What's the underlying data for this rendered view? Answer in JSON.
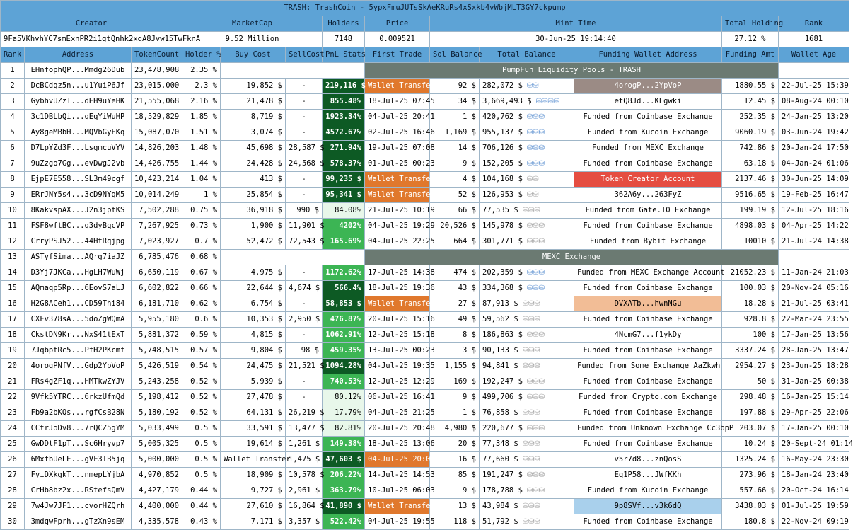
{
  "title": "TRASH: TrashCoin - 5ypxFmuJUTsSkAeKRuRs4xSxkb4vWbjMLT3GY7ckpump",
  "summary_headers": [
    "Creator",
    "MarketCap",
    "Holders",
    "Price",
    "Mint Time",
    "Total Holding",
    "Rank"
  ],
  "summary": {
    "creator": "9Fa5VKhvhYC7smExnPR2i1gtQnhk2xqA8Jvw15TwFknA",
    "marketcap": "9.52 Million",
    "holders": "7148",
    "price": "0.009521",
    "mint_time": "30-Jun-25 19:14:40",
    "total_holding": "27.12 %",
    "rank": "1681"
  },
  "columns": [
    "Rank",
    "Address",
    "TokenCount",
    "Holder %",
    "Buy Cost",
    "SellCost",
    "PnL Stats",
    "First Trade",
    "Sol Balance",
    "Total Balance",
    "Funding Wallet Address",
    "Funding Amt",
    "Wallet Age"
  ],
  "rows": [
    {
      "rank": "1",
      "addr": "EHnfophQP...Mmdg26Dub",
      "tokens": "23,478,908",
      "pct": "2.35 %",
      "span": "PumpFun Liquidity Pools - TRASH"
    },
    {
      "rank": "2",
      "addr": "DcBCdqz5n...u1YuiP6Jf",
      "tokens": "23,015,000",
      "pct": "2.3 %",
      "buy": "19,852 $",
      "sell": "-",
      "pnl": "219,116 $",
      "pnl_style": "dark",
      "first": "Wallet Transfer",
      "first_style": "wt",
      "sol": "92 $",
      "total": "282,072 $",
      "icons": "blue2",
      "fund": "4orogP...2YpVoP",
      "fund_style": "grey",
      "amt": "1880.55 $",
      "age": "22-Jul-25 15:39"
    },
    {
      "rank": "3",
      "addr": "GybhvUZzT...dEH9uYeHK",
      "tokens": "21,555,068",
      "pct": "2.16 %",
      "buy": "21,478 $",
      "sell": "-",
      "pnl": "855.48%",
      "pnl_style": "dark",
      "first": "18-Jul-25 07:45",
      "sol": "34 $",
      "total": "3,669,493 $",
      "icons": "blue4",
      "fund": "etQ8Jd...KLgwki",
      "amt": "12.45 $",
      "age": "08-Aug-24 00:10"
    },
    {
      "rank": "4",
      "addr": "3c1DBLbQi...qEqYiWuHP",
      "tokens": "18,529,829",
      "pct": "1.85 %",
      "buy": "8,719 $",
      "sell": "-",
      "pnl": "1923.34%",
      "pnl_style": "dark",
      "first": "04-Jul-25 20:41",
      "sol": "1 $",
      "total": "420,762 $",
      "icons": "blue3",
      "fund": "Funded from Coinbase Exchange",
      "amt": "252.35 $",
      "age": "24-Jan-25 13:20"
    },
    {
      "rank": "5",
      "addr": "Ay8geMBbH...MQVbGyFKq",
      "tokens": "15,087,070",
      "pct": "1.51 %",
      "buy": "3,074 $",
      "sell": "-",
      "pnl": "4572.67%",
      "pnl_style": "dark",
      "first": "02-Jul-25 16:46",
      "sol": "1,169 $",
      "total": "955,137 $",
      "icons": "blue3",
      "fund": "Funded from Kucoin Exchange",
      "amt": "9060.19 $",
      "age": "03-Jun-24 19:42"
    },
    {
      "rank": "6",
      "addr": "D7LpYZd3F...LsgmcuVYV",
      "tokens": "14,826,203",
      "pct": "1.48 %",
      "buy": "45,698 $",
      "sell": "28,587 $",
      "pnl": "271.94%",
      "pnl_style": "dark",
      "first": "19-Jul-25 07:08",
      "sol": "14 $",
      "total": "706,126 $",
      "icons": "blue3",
      "fund": "Funded from MEXC Exchange",
      "amt": "742.86 $",
      "age": "20-Jan-24 17:50"
    },
    {
      "rank": "7",
      "addr": "9uZzgo7Gg...evDwgJ2vb",
      "tokens": "14,426,755",
      "pct": "1.44 %",
      "buy": "24,428 $",
      "sell": "24,568 $",
      "pnl": "578.37%",
      "pnl_style": "dark",
      "first": "01-Jul-25 00:23",
      "sol": "9 $",
      "total": "152,205 $",
      "icons": "blue3",
      "fund": "Funded from Coinbase Exchange",
      "amt": "63.18 $",
      "age": "04-Jan-24 01:06"
    },
    {
      "rank": "8",
      "addr": "EjpE7E558...SL3m49cgf",
      "tokens": "10,423,214",
      "pct": "1.04 %",
      "buy": "413 $",
      "sell": "-",
      "pnl": "99,235 $",
      "pnl_style": "dark",
      "first": "Wallet Transfer",
      "first_style": "wt",
      "sol": "4 $",
      "total": "104,168 $",
      "icons": "mix2",
      "fund": "Token Creator Account",
      "fund_style": "red",
      "amt": "2137.46 $",
      "age": "30-Jun-25 14:09"
    },
    {
      "rank": "9",
      "addr": "ERrJNY5s4...3cD9NYqM5",
      "tokens": "10,014,249",
      "pct": "1 %",
      "buy": "25,854 $",
      "sell": "-",
      "pnl": "95,341 $",
      "pnl_style": "dark",
      "first": "Wallet Transfer",
      "first_style": "wt",
      "sol": "52 $",
      "total": "126,953 $",
      "icons": "mix2",
      "fund": "362A6y...263FyZ",
      "amt": "9516.65 $",
      "age": "19-Feb-25 16:47"
    },
    {
      "rank": "10",
      "addr": "8KakvspAX...J2n3jptKS",
      "tokens": "7,502,288",
      "pct": "0.75 %",
      "buy": "36,918 $",
      "sell": "990 $",
      "pnl": "84.08%",
      "pnl_style": "light",
      "first": "21-Jul-25 10:19",
      "sol": "66 $",
      "total": "77,535 $",
      "icons": "grey3",
      "fund": "Funded from Gate.IO Exchange",
      "amt": "199.19 $",
      "age": "12-Jul-25 18:16"
    },
    {
      "rank": "11",
      "addr": "FSF8wftBC...q3dyBqcVP",
      "tokens": "7,267,925",
      "pct": "0.73 %",
      "buy": "1,900 $",
      "sell": "11,901 $",
      "pnl": "4202%",
      "pnl_style": "mid",
      "first": "04-Jul-25 19:29",
      "sol": "20,526 $",
      "total": "145,978 $",
      "icons": "grey3",
      "fund": "Funded from Coinbase Exchange",
      "amt": "4898.03 $",
      "age": "04-Apr-25 14:22"
    },
    {
      "rank": "12",
      "addr": "CrryPSJ52...44HtRqjpg",
      "tokens": "7,023,927",
      "pct": "0.7 %",
      "buy": "52,472 $",
      "sell": "72,543 $",
      "pnl": "165.69%",
      "pnl_style": "mid",
      "first": "04-Jul-25 22:25",
      "sol": "664 $",
      "total": "301,771 $",
      "icons": "grey3",
      "fund": "Funded from Bybit Exchange",
      "amt": "10010 $",
      "age": "21-Jul-24 14:38"
    },
    {
      "rank": "13",
      "addr": "ASTyfSima...AQrg7iaJZ",
      "tokens": "6,785,476",
      "pct": "0.68 %",
      "span": "MEXC Exchange"
    },
    {
      "rank": "14",
      "addr": "D3Yj7JKCa...HgLH7WuWj",
      "tokens": "6,650,119",
      "pct": "0.67 %",
      "buy": "4,975 $",
      "sell": "-",
      "pnl": "1172.62%",
      "pnl_style": "mid",
      "first": "17-Jul-25 14:38",
      "sol": "474 $",
      "total": "202,359 $",
      "icons": "blue3",
      "fund": "Funded from MEXC Exchange Account",
      "amt": "21052.23 $",
      "age": "11-Jan-24 21:03"
    },
    {
      "rank": "15",
      "addr": "AQmaqp5Rp...6EovS7aLJ",
      "tokens": "6,602,822",
      "pct": "0.66 %",
      "buy": "22,644 $",
      "sell": "4,674 $",
      "pnl": "566.4%",
      "pnl_style": "dark",
      "first": "18-Jul-25 19:36",
      "sol": "43 $",
      "total": "334,368 $",
      "icons": "blue3",
      "fund": "Funded from Coinbase Exchange",
      "amt": "100.03 $",
      "age": "20-Nov-24 05:16"
    },
    {
      "rank": "16",
      "addr": "H2G8ACeh1...CD59Thi84",
      "tokens": "6,181,710",
      "pct": "0.62 %",
      "buy": "6,754 $",
      "sell": "-",
      "pnl": "58,853 $",
      "pnl_style": "dark",
      "first": "Wallet Transfer",
      "first_style": "wt",
      "sol": "27 $",
      "total": "87,913 $",
      "icons": "grey3",
      "fund": "DVXATb...hwnNGu",
      "fund_style": "peach",
      "amt": "18.28 $",
      "age": "21-Jul-25 03:41"
    },
    {
      "rank": "17",
      "addr": "CXFv378sA...5doZgWQmA",
      "tokens": "5,955,180",
      "pct": "0.6 %",
      "buy": "10,353 $",
      "sell": "2,950 $",
      "pnl": "476.87%",
      "pnl_style": "mid",
      "first": "20-Jul-25 15:16",
      "sol": "49 $",
      "total": "59,562 $",
      "icons": "grey3",
      "fund": "Funded from Coinbase Exchange",
      "amt": "928.8 $",
      "age": "22-Mar-24 23:55"
    },
    {
      "rank": "18",
      "addr": "CkstDN9Kr...NxS41tExT",
      "tokens": "5,881,372",
      "pct": "0.59 %",
      "buy": "4,815 $",
      "sell": "-",
      "pnl": "1062.91%",
      "pnl_style": "mid",
      "first": "12-Jul-25 15:18",
      "sol": "8 $",
      "total": "186,863 $",
      "icons": "grey3",
      "fund": "4NcmG7...f1ykDy",
      "amt": "100 $",
      "age": "17-Jan-25 13:56"
    },
    {
      "rank": "19",
      "addr": "7JqbptRc5...PfH2PKcmf",
      "tokens": "5,748,515",
      "pct": "0.57 %",
      "buy": "9,804 $",
      "sell": "98 $",
      "pnl": "459.35%",
      "pnl_style": "mid",
      "first": "13-Jul-25 00:23",
      "sol": "3 $",
      "total": "90,133 $",
      "icons": "grey3",
      "fund": "Funded from Coinbase Exchange",
      "amt": "3337.24 $",
      "age": "28-Jan-25 13:47"
    },
    {
      "rank": "20",
      "addr": "4orogPNfV...Gdp2YpVoP",
      "tokens": "5,426,519",
      "pct": "0.54 %",
      "buy": "24,475 $",
      "sell": "21,521 $",
      "pnl": "1094.28%",
      "pnl_style": "dark",
      "first": "04-Jul-25 19:35",
      "sol": "1,155 $",
      "total": "94,841 $",
      "icons": "grey3",
      "fund": "Funded from Some Exchange AaZkwh",
      "amt": "2954.27 $",
      "age": "23-Jun-25 18:28"
    },
    {
      "rank": "21",
      "addr": "FRs4gZF1q...HMTkwZYJV",
      "tokens": "5,243,258",
      "pct": "0.52 %",
      "buy": "5,939 $",
      "sell": "-",
      "pnl": "740.53%",
      "pnl_style": "mid",
      "first": "12-Jul-25 12:29",
      "sol": "169 $",
      "total": "192,247 $",
      "icons": "grey3",
      "fund": "Funded from Coinbase Exchange",
      "amt": "50 $",
      "age": "31-Jan-25 00:38"
    },
    {
      "rank": "22",
      "addr": "9Vfk5YTRC...6rkzUfmQd",
      "tokens": "5,198,412",
      "pct": "0.52 %",
      "buy": "27,478 $",
      "sell": "-",
      "pnl": "80.12%",
      "pnl_style": "light",
      "first": "06-Jul-25 16:41",
      "sol": "9 $",
      "total": "499,706 $",
      "icons": "grey3",
      "fund": "Funded from Crypto.com Exchange",
      "amt": "298.48 $",
      "age": "16-Jan-25 15:14"
    },
    {
      "rank": "23",
      "addr": "Fb9a2bKQs...rgfCsB28N",
      "tokens": "5,180,192",
      "pct": "0.52 %",
      "buy": "64,131 $",
      "sell": "26,219 $",
      "pnl": "17.79%",
      "pnl_style": "light",
      "first": "04-Jul-25 21:25",
      "sol": "1 $",
      "total": "76,858 $",
      "icons": "grey3",
      "fund": "Funded from Coinbase Exchange",
      "amt": "197.88 $",
      "age": "29-Apr-25 22:06"
    },
    {
      "rank": "24",
      "addr": "CCtrJoDv8...7rQCZ5gYM",
      "tokens": "5,033,499",
      "pct": "0.5 %",
      "buy": "33,591 $",
      "sell": "13,477 $",
      "pnl": "82.81%",
      "pnl_style": "light",
      "first": "20-Jul-25 20:48",
      "sol": "4,980 $",
      "total": "220,677 $",
      "icons": "grey3",
      "fund": "Funded from Unknown Exchange Cc3bpP",
      "amt": "203.07 $",
      "age": "17-Jan-25 00:10"
    },
    {
      "rank": "25",
      "addr": "GwDDtF1pT...Sc6Hryvp7",
      "tokens": "5,005,325",
      "pct": "0.5 %",
      "buy": "19,614 $",
      "sell": "1,261 $",
      "pnl": "149.38%",
      "pnl_style": "mid",
      "first": "18-Jul-25 13:06",
      "sol": "20 $",
      "total": "77,348 $",
      "icons": "grey3",
      "fund": "Funded from Coinbase Exchange",
      "amt": "10.24 $",
      "age": "20-Sept-24 01:14"
    },
    {
      "rank": "26",
      "addr": "6MxfbUeLE...gVF3TB5jq",
      "tokens": "5,000,000",
      "pct": "0.5 %",
      "buy": "Wallet Transfer",
      "sell": "1,475 $",
      "pnl": "47,603 $",
      "pnl_style": "dark",
      "first": "04-Jul-25 20:01",
      "first_style": "wt",
      "sol": "16 $",
      "total": "77,660 $",
      "icons": "grey3",
      "fund": "v5r7d8...znQosS",
      "amt": "1325.24 $",
      "age": "16-May-24 23:30"
    },
    {
      "rank": "27",
      "addr": "FyiDXkgkT...nmepLYjbA",
      "tokens": "4,970,852",
      "pct": "0.5 %",
      "buy": "18,909 $",
      "sell": "10,578 $",
      "pnl": "206.22%",
      "pnl_style": "mid",
      "first": "14-Jul-25 14:53",
      "sol": "85 $",
      "total": "191,247 $",
      "icons": "grey3",
      "fund": "Eq1P58...JWfKKh",
      "amt": "273.96 $",
      "age": "18-Jan-24 23:40"
    },
    {
      "rank": "28",
      "addr": "CrHb8bz2x...RStefsQmV",
      "tokens": "4,427,179",
      "pct": "0.44 %",
      "buy": "9,727 $",
      "sell": "2,961 $",
      "pnl": "363.79%",
      "pnl_style": "mid",
      "first": "10-Jul-25 06:03",
      "sol": "9 $",
      "total": "178,788 $",
      "icons": "grey3",
      "fund": "Funded from Kucoin Exchange",
      "amt": "557.66 $",
      "age": "20-Oct-24 16:14"
    },
    {
      "rank": "29",
      "addr": "7w4Jw7JF1...cvorHZQrh",
      "tokens": "4,400,000",
      "pct": "0.44 %",
      "buy": "27,610 $",
      "sell": "16,864 $",
      "pnl": "41,890 $",
      "pnl_style": "dark",
      "first": "Wallet Transfer",
      "first_style": "wt",
      "sol": "13 $",
      "total": "43,984 $",
      "icons": "grey3",
      "fund": "9p8SVf...v3k6dQ",
      "fund_style": "blue",
      "amt": "3438.03 $",
      "age": "01-Jul-25 19:59"
    },
    {
      "rank": "30",
      "addr": "3mdqwFprh...gTzXn9sEM",
      "tokens": "4,335,578",
      "pct": "0.43 %",
      "buy": "7,171 $",
      "sell": "3,357 $",
      "pnl": "522.42%",
      "pnl_style": "mid",
      "first": "04-Jul-25 19:55",
      "sol": "118 $",
      "total": "51,792 $",
      "icons": "grey3",
      "fund": "Funded from Coinbase Exchange",
      "amt": "180.8 $",
      "age": "22-Nov-24 09:19"
    }
  ],
  "icon_glyphs": {
    "blue2": "⛁⛁",
    "blue3": "⛁⛁⛁",
    "blue4": "⛁⛁⛁⛁",
    "mix2": "⛁⛁",
    "grey3": "⛁⛁⛁"
  },
  "colors": {
    "header": "#5da3d6",
    "pnl_dark": "#0d5a24",
    "pnl_mid": "#3cb554",
    "wallet_transfer": "#e0782d",
    "pool": "#6b7a72",
    "creator": "#e54d41"
  }
}
